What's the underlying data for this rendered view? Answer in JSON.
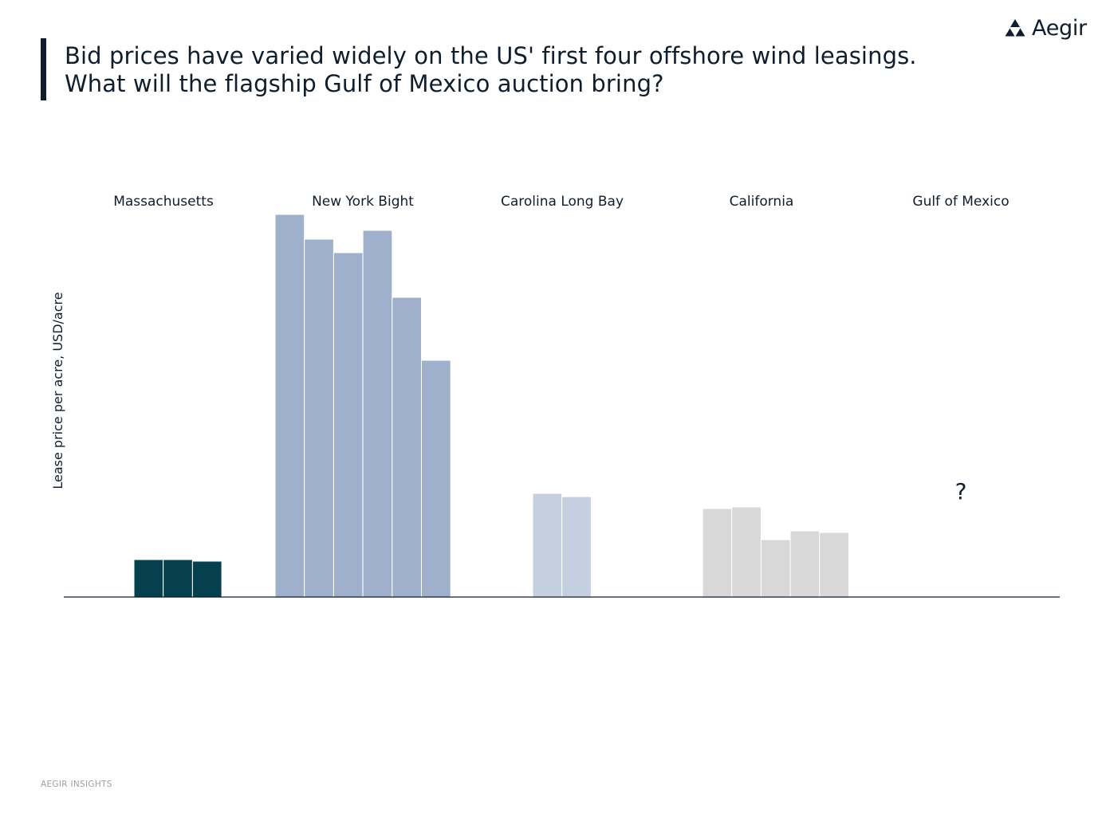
{
  "title": {
    "line1": "Bid prices have varied widely on the US' first four offshore wind leasings.",
    "line2": "What will the flagship Gulf of Mexico auction bring?"
  },
  "brand": {
    "logo_icon": "triangle-cluster-icon",
    "name": "Aegir"
  },
  "footer": {
    "text": "AEGIR INSIGHTS"
  },
  "chart_data": {
    "type": "bar",
    "ylabel": "Lease price per acre, USD/acre",
    "y_axis_ticks_shown": false,
    "grid": false,
    "groups": [
      {
        "name": "Massachusetts",
        "color": "#063f4d",
        "values": [
          47,
          47,
          45
        ]
      },
      {
        "name": "New York Bight",
        "color": "#9fb0cd",
        "values": [
          480,
          449,
          432,
          460,
          376,
          297
        ]
      },
      {
        "name": "Carolina Long Bay",
        "color": "#c4cfe0",
        "values": [
          130,
          126
        ]
      },
      {
        "name": "California",
        "color": "#d8d8d8",
        "values": [
          111,
          113,
          72,
          83,
          81
        ]
      },
      {
        "name": "Gulf of Mexico",
        "color": "#0f1e2d",
        "values": [],
        "annotation": "?"
      }
    ],
    "ylim": [
      0,
      480
    ]
  }
}
